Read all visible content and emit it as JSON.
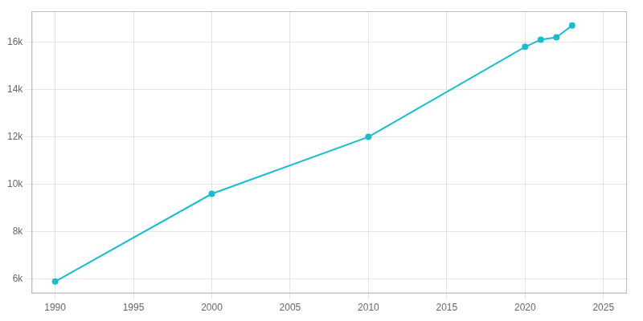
{
  "chart_data": {
    "type": "line",
    "x": [
      1990,
      2000,
      2010,
      2020,
      2021,
      2022,
      2023
    ],
    "values": [
      5900,
      9600,
      12000,
      15800,
      16100,
      16200,
      16700
    ],
    "color": "#17becf",
    "marker": "circle",
    "xlim": [
      1988.5,
      2026.5
    ],
    "ylim": [
      5400,
      17300
    ],
    "xticks": [
      1990,
      1995,
      2000,
      2005,
      2010,
      2015,
      2020,
      2025
    ],
    "yticks": [
      {
        "value": 6000,
        "label": "6k"
      },
      {
        "value": 8000,
        "label": "8k"
      },
      {
        "value": 10000,
        "label": "10k"
      },
      {
        "value": 12000,
        "label": "12k"
      },
      {
        "value": 14000,
        "label": "14k"
      },
      {
        "value": 16000,
        "label": "16k"
      }
    ],
    "grid": true
  }
}
